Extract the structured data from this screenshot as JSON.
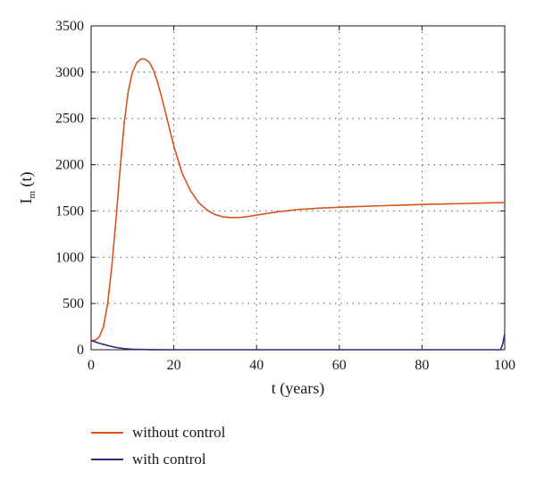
{
  "chart_data": {
    "type": "line",
    "title": "",
    "xlabel": "t (years)",
    "ylabel_main": "I",
    "ylabel_sub": "m",
    "ylabel_tail": " (t)",
    "xlim": [
      0,
      100
    ],
    "ylim": [
      0,
      3500
    ],
    "xticks": [
      "0",
      "20",
      "40",
      "60",
      "80",
      "100"
    ],
    "yticks": [
      "0",
      "500",
      "1000",
      "1500",
      "2000",
      "2500",
      "3000",
      "3500"
    ],
    "grid": true,
    "legend_position": "bottom-left",
    "series": [
      {
        "name": "without control",
        "color": "#d9531e",
        "x": [
          0,
          1,
          2,
          3,
          4,
          5,
          6,
          7,
          8,
          9,
          10,
          11,
          12,
          13,
          14,
          15,
          16,
          17,
          18,
          19,
          20,
          22,
          24,
          26,
          28,
          30,
          32,
          34,
          36,
          38,
          40,
          45,
          50,
          55,
          60,
          65,
          70,
          75,
          80,
          85,
          90,
          95,
          100
        ],
        "y": [
          100,
          105,
          140,
          250,
          500,
          900,
          1400,
          1950,
          2450,
          2800,
          3000,
          3100,
          3140,
          3140,
          3110,
          3030,
          2900,
          2740,
          2560,
          2380,
          2200,
          1910,
          1720,
          1590,
          1510,
          1460,
          1435,
          1428,
          1430,
          1440,
          1455,
          1490,
          1515,
          1530,
          1540,
          1548,
          1556,
          1563,
          1570,
          1575,
          1580,
          1585,
          1590
        ]
      },
      {
        "name": "with control",
        "color": "#2e2a7e",
        "x": [
          0,
          1,
          2,
          4,
          6,
          8,
          10,
          12,
          15,
          20,
          30,
          40,
          60,
          80,
          99,
          99.5,
          100
        ],
        "y": [
          100,
          85,
          70,
          45,
          25,
          12,
          6,
          3,
          1,
          0,
          0,
          0,
          0,
          0,
          0,
          60,
          170
        ]
      }
    ]
  }
}
